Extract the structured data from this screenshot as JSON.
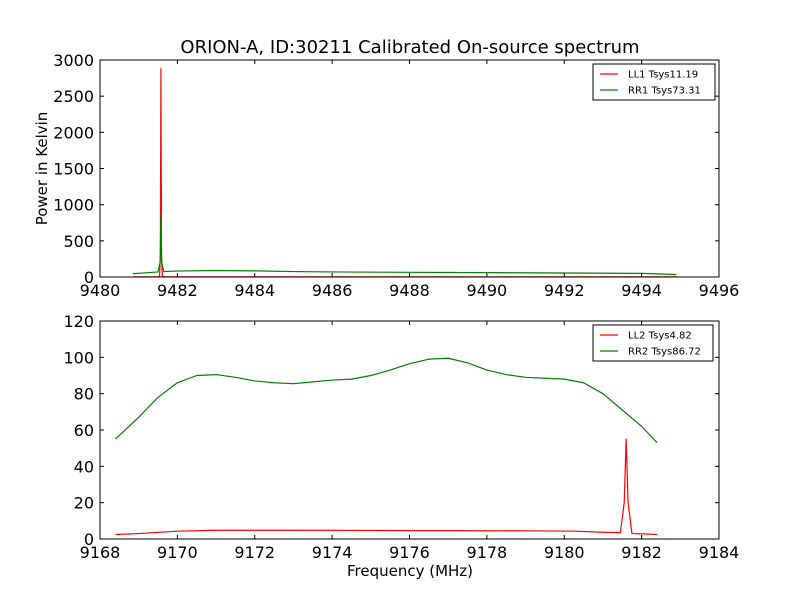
{
  "figure": {
    "title": "ORION-A, ID:30211 Calibrated On-source spectrum",
    "xlabel": "Frequency (MHz)"
  },
  "chart_data": [
    {
      "type": "line",
      "title": "ORION-A, ID:30211 Calibrated On-source spectrum",
      "xlabel": "",
      "ylabel": "Power in Kelvin",
      "xlim": [
        9480,
        9496
      ],
      "ylim": [
        0,
        3000
      ],
      "xticks": [
        "9480",
        "9482",
        "9484",
        "9486",
        "9488",
        "9490",
        "9492",
        "9494",
        "9496"
      ],
      "yticks": [
        "0",
        "500",
        "1000",
        "1500",
        "2000",
        "2500",
        "3000"
      ],
      "legend_position": "top-right",
      "grid": false,
      "series": [
        {
          "name": "LL1 Tsys11.19",
          "color": "#ff0000",
          "points": [
            [
              9480.85,
              2
            ],
            [
              9481.45,
              2
            ],
            [
              9481.54,
              5
            ],
            [
              9481.56,
              300
            ],
            [
              9481.575,
              2880
            ],
            [
              9481.59,
              300
            ],
            [
              9481.61,
              10
            ],
            [
              9481.7,
              2
            ],
            [
              9494.9,
              2
            ]
          ]
        },
        {
          "name": "RR1 Tsys73.31",
          "color": "#008000",
          "points": [
            [
              9480.85,
              45
            ],
            [
              9481.5,
              70
            ],
            [
              9481.555,
              200
            ],
            [
              9481.575,
              840
            ],
            [
              9481.595,
              200
            ],
            [
              9481.65,
              75
            ],
            [
              9482,
              82
            ],
            [
              9483,
              90
            ],
            [
              9484,
              85
            ],
            [
              9485,
              75
            ],
            [
              9486,
              70
            ],
            [
              9488,
              65
            ],
            [
              9490,
              60
            ],
            [
              9492,
              55
            ],
            [
              9494,
              50
            ],
            [
              9494.9,
              35
            ]
          ]
        }
      ]
    },
    {
      "type": "line",
      "title": "",
      "xlabel": "Frequency (MHz)",
      "ylabel": "",
      "xlim": [
        9168,
        9184
      ],
      "ylim": [
        0,
        120
      ],
      "xticks": [
        "9168",
        "9170",
        "9172",
        "9174",
        "9176",
        "9178",
        "9180",
        "9182",
        "9184"
      ],
      "yticks": [
        "0",
        "20",
        "40",
        "60",
        "80",
        "100",
        "120"
      ],
      "legend_position": "top-right",
      "grid": false,
      "series": [
        {
          "name": "LL2 Tsys4.82",
          "color": "#ff0000",
          "points": [
            [
              9168.4,
              2.5
            ],
            [
              9169,
              3
            ],
            [
              9170,
              4.3
            ],
            [
              9171,
              4.8
            ],
            [
              9173,
              4.8
            ],
            [
              9175,
              4.7
            ],
            [
              9177,
              4.6
            ],
            [
              9179,
              4.5
            ],
            [
              9180.3,
              4.3
            ],
            [
              9181,
              3.7
            ],
            [
              9181.45,
              3.5
            ],
            [
              9181.55,
              20
            ],
            [
              9181.6,
              55
            ],
            [
              9181.65,
              20
            ],
            [
              9181.75,
              3
            ],
            [
              9182.4,
              2.5
            ]
          ]
        },
        {
          "name": "RR2 Tsys86.72",
          "color": "#008000",
          "points": [
            [
              9168.4,
              55
            ],
            [
              9169,
              67
            ],
            [
              9169.5,
              78
            ],
            [
              9170,
              86
            ],
            [
              9170.5,
              90
            ],
            [
              9171,
              90.5
            ],
            [
              9171.5,
              89
            ],
            [
              9172,
              87
            ],
            [
              9172.5,
              86
            ],
            [
              9173,
              85.5
            ],
            [
              9173.5,
              86.5
            ],
            [
              9174,
              87.5
            ],
            [
              9174.5,
              88
            ],
            [
              9175,
              90
            ],
            [
              9175.5,
              93
            ],
            [
              9176,
              96.5
            ],
            [
              9176.5,
              99
            ],
            [
              9177,
              99.5
            ],
            [
              9177.5,
              97
            ],
            [
              9178,
              93
            ],
            [
              9178.5,
              90.5
            ],
            [
              9179,
              89
            ],
            [
              9179.5,
              88.5
            ],
            [
              9180,
              88
            ],
            [
              9180.5,
              86
            ],
            [
              9181,
              80
            ],
            [
              9181.5,
              71
            ],
            [
              9182,
              62
            ],
            [
              9182.4,
              53
            ]
          ]
        }
      ]
    }
  ]
}
